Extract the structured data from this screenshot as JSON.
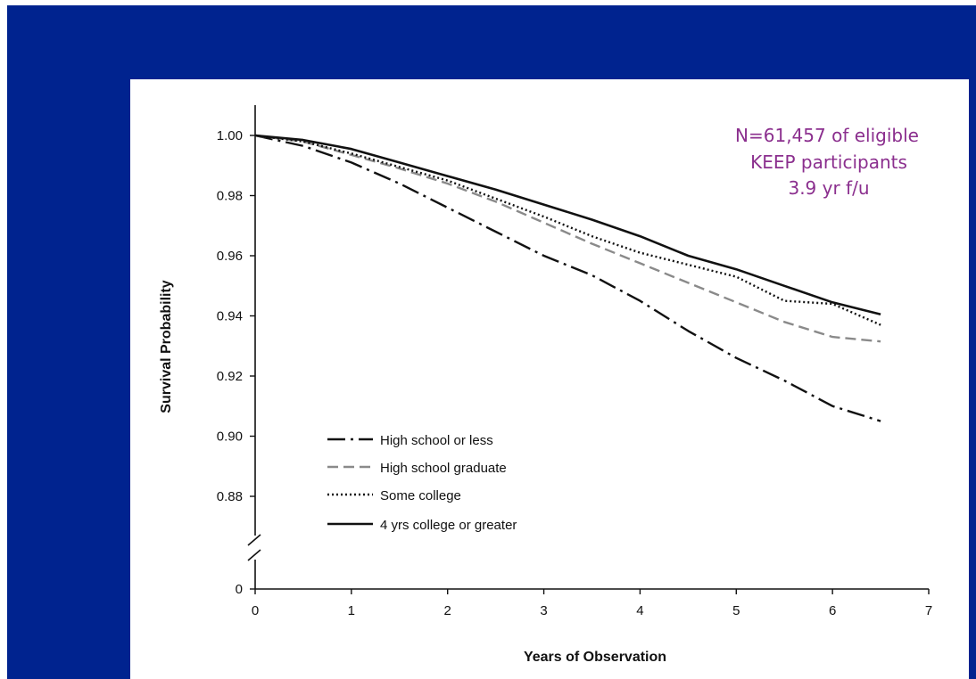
{
  "chart_data": {
    "type": "line",
    "title": "",
    "xlabel": "Years of Observation",
    "ylabel": "Survival Probability",
    "xlim": [
      0,
      7
    ],
    "ylim_upper_segment": [
      0.88,
      1.0
    ],
    "y_axis_break": true,
    "x_ticks": [
      "0",
      "1",
      "2",
      "3",
      "4",
      "5",
      "6",
      "7"
    ],
    "y_ticks": [
      "0",
      "0.88",
      "0.90",
      "0.92",
      "0.94",
      "0.96",
      "0.98",
      "1.00"
    ],
    "annotation": [
      "N=61,457 of eligible",
      "KEEP participants",
      "3.9 yr f/u"
    ],
    "legend_position": "bottom-left",
    "grid": false,
    "series": [
      {
        "name": "High school or less",
        "style": "dash-dot",
        "color": "#111111",
        "x": [
          0,
          0.5,
          1,
          1.5,
          2,
          2.5,
          3,
          3.5,
          4,
          4.5,
          5,
          5.5,
          6,
          6.5
        ],
        "y": [
          1.0,
          0.9965,
          0.991,
          0.984,
          0.976,
          0.968,
          0.96,
          0.9535,
          0.945,
          0.935,
          0.926,
          0.9185,
          0.91,
          0.905
        ]
      },
      {
        "name": "High school graduate",
        "style": "dashed",
        "color": "#8a8a8a",
        "x": [
          0,
          0.5,
          1,
          1.5,
          2,
          2.5,
          3,
          3.5,
          4,
          4.5,
          5,
          5.5,
          6,
          6.5
        ],
        "y": [
          1.0,
          0.998,
          0.9935,
          0.989,
          0.984,
          0.978,
          0.971,
          0.964,
          0.9575,
          0.951,
          0.9445,
          0.938,
          0.933,
          0.9315
        ]
      },
      {
        "name": "Some college",
        "style": "dotted",
        "color": "#111111",
        "x": [
          0,
          0.5,
          1,
          1.5,
          2,
          2.5,
          3,
          3.5,
          4,
          4.5,
          5,
          5.5,
          6,
          6.5
        ],
        "y": [
          1.0,
          0.998,
          0.994,
          0.9895,
          0.985,
          0.979,
          0.973,
          0.9665,
          0.961,
          0.957,
          0.953,
          0.945,
          0.944,
          0.937
        ]
      },
      {
        "name": "4 yrs college or greater",
        "style": "solid",
        "color": "#111111",
        "x": [
          0,
          0.5,
          1,
          1.5,
          2,
          2.5,
          3,
          3.5,
          4,
          4.5,
          5,
          5.5,
          6,
          6.5
        ],
        "y": [
          1.0,
          0.9985,
          0.9955,
          0.991,
          0.9865,
          0.982,
          0.977,
          0.972,
          0.9665,
          0.96,
          0.9555,
          0.95,
          0.9445,
          0.9405
        ]
      }
    ]
  },
  "colors": {
    "frame_blue": "#00238f",
    "annotation": "#8b2f8e"
  }
}
